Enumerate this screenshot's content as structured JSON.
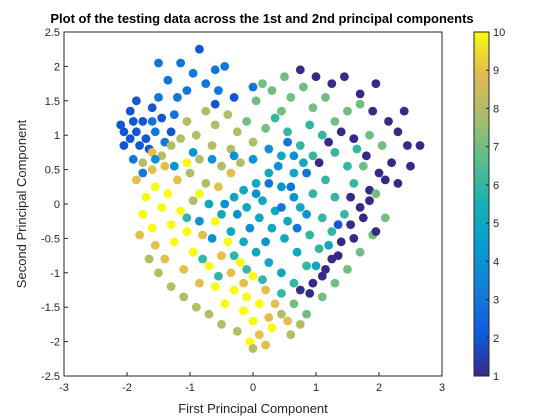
{
  "chart_data": {
    "type": "scatter",
    "title": "Plot of the testing data across the 1st and 2nd principal components",
    "xlabel": "First Principal Component",
    "ylabel": "Second Principal Component",
    "xlim": [
      -3,
      3
    ],
    "ylim": [
      -2.5,
      2.5
    ],
    "xticks": [
      "-3",
      "-2",
      "-1",
      "0",
      "1",
      "2",
      "3"
    ],
    "yticks": [
      "-2.5",
      "-2",
      "-1.5",
      "-1",
      "-0.5",
      "0",
      "0.5",
      "1",
      "1.5",
      "2",
      "2.5"
    ],
    "grid": false,
    "colorbar": {
      "colormap": "parula",
      "limits": [
        1,
        10
      ],
      "ticks": [
        "1",
        "2",
        "3",
        "4",
        "5",
        "6",
        "7",
        "8",
        "9",
        "10"
      ]
    },
    "color_value_description": "class label 1-10",
    "points": [
      [
        -2.1,
        1.15,
        2
      ],
      [
        -1.95,
        1.35,
        2
      ],
      [
        -1.85,
        1.05,
        2
      ],
      [
        -2.05,
        0.85,
        2
      ],
      [
        -1.75,
        1.2,
        2
      ],
      [
        -1.6,
        1.4,
        2
      ],
      [
        -1.55,
        1.05,
        3
      ],
      [
        -1.5,
        1.55,
        3
      ],
      [
        -1.7,
        0.95,
        2
      ],
      [
        -1.85,
        1.5,
        2
      ],
      [
        -1.4,
        0.9,
        3
      ],
      [
        -1.25,
        1.3,
        3
      ],
      [
        -1.15,
        2.05,
        3
      ],
      [
        -0.95,
        1.9,
        3
      ],
      [
        -0.85,
        2.25,
        2
      ],
      [
        -0.75,
        1.75,
        3
      ],
      [
        -0.6,
        1.95,
        3
      ],
      [
        -0.55,
        1.65,
        3
      ],
      [
        -0.45,
        2.0,
        3
      ],
      [
        -1.05,
        1.65,
        3
      ],
      [
        -1.35,
        1.8,
        3
      ],
      [
        -1.5,
        2.05,
        3
      ],
      [
        -1.95,
        0.95,
        2
      ],
      [
        -2.05,
        1.05,
        2
      ],
      [
        -1.65,
        0.8,
        2
      ],
      [
        -1.45,
        0.7,
        8
      ],
      [
        -1.3,
        0.85,
        8
      ],
      [
        -1.15,
        0.95,
        8
      ],
      [
        -1.05,
        1.2,
        8
      ],
      [
        -0.9,
        1.0,
        8
      ],
      [
        -0.75,
        1.35,
        8
      ],
      [
        -0.6,
        1.15,
        8
      ],
      [
        -0.4,
        1.3,
        8
      ],
      [
        -0.25,
        1.05,
        8
      ],
      [
        -0.1,
        1.2,
        7
      ],
      [
        0.05,
        1.5,
        7
      ],
      [
        0.15,
        1.75,
        7
      ],
      [
        0.3,
        1.65,
        7
      ],
      [
        -0.65,
        0.85,
        8
      ],
      [
        -0.35,
        0.8,
        8
      ],
      [
        -0.85,
        0.65,
        8
      ],
      [
        -1.0,
        0.45,
        8
      ],
      [
        -0.5,
        0.55,
        8
      ],
      [
        -0.2,
        0.6,
        8
      ],
      [
        0.0,
        0.9,
        8
      ],
      [
        0.2,
        1.1,
        7
      ],
      [
        0.45,
        1.35,
        7
      ],
      [
        0.6,
        1.55,
        7
      ],
      [
        0.8,
        1.7,
        7
      ],
      [
        0.95,
        1.4,
        7
      ],
      [
        1.15,
        1.55,
        7
      ],
      [
        1.3,
        1.2,
        7
      ],
      [
        1.5,
        1.35,
        7
      ],
      [
        1.7,
        1.45,
        7
      ],
      [
        1.85,
        1.0,
        7
      ],
      [
        2.05,
        0.85,
        7
      ],
      [
        1.0,
        1.85,
        1
      ],
      [
        1.25,
        1.75,
        1
      ],
      [
        1.45,
        1.85,
        1
      ],
      [
        1.7,
        1.6,
        1
      ],
      [
        1.9,
        1.35,
        1
      ],
      [
        2.15,
        1.2,
        1
      ],
      [
        2.3,
        1.05,
        1
      ],
      [
        2.45,
        0.85,
        1
      ],
      [
        2.2,
        0.6,
        1
      ],
      [
        2.0,
        0.45,
        1
      ],
      [
        1.85,
        0.2,
        1
      ],
      [
        1.7,
        -0.05,
        1
      ],
      [
        1.55,
        -0.3,
        1
      ],
      [
        1.4,
        -0.55,
        1
      ],
      [
        1.25,
        -0.8,
        1
      ],
      [
        1.1,
        -1.05,
        1
      ],
      [
        0.9,
        -1.3,
        1
      ],
      [
        1.8,
        0.7,
        1
      ],
      [
        1.6,
        0.95,
        1
      ],
      [
        1.4,
        1.05,
        1
      ],
      [
        1.2,
        0.9,
        1
      ],
      [
        1.05,
        0.6,
        1
      ],
      [
        2.4,
        1.35,
        1
      ],
      [
        2.65,
        0.85,
        1
      ],
      [
        1.95,
        1.75,
        1
      ],
      [
        0.75,
        1.95,
        1
      ],
      [
        0.5,
        1.85,
        7
      ],
      [
        0.35,
        1.25,
        6
      ],
      [
        0.55,
        1.05,
        6
      ],
      [
        0.75,
        0.85,
        6
      ],
      [
        0.95,
        0.7,
        6
      ],
      [
        0.65,
        0.45,
        5
      ],
      [
        0.45,
        0.7,
        5
      ],
      [
        0.25,
        0.45,
        5
      ],
      [
        0.05,
        0.3,
        5
      ],
      [
        -0.15,
        0.2,
        5
      ],
      [
        0.15,
        0.05,
        5
      ],
      [
        0.35,
        -0.1,
        5
      ],
      [
        0.55,
        -0.25,
        5
      ],
      [
        0.75,
        -0.05,
        5
      ],
      [
        0.95,
        0.15,
        6
      ],
      [
        1.15,
        0.35,
        6
      ],
      [
        1.3,
        0.1,
        6
      ],
      [
        1.1,
        -0.2,
        6
      ],
      [
        0.9,
        -0.45,
        6
      ],
      [
        0.7,
        -0.7,
        5
      ],
      [
        0.5,
        -0.5,
        5
      ],
      [
        0.3,
        -0.35,
        5
      ],
      [
        0.1,
        -0.2,
        5
      ],
      [
        -0.1,
        -0.05,
        5
      ],
      [
        -0.3,
        0.1,
        5
      ],
      [
        -0.5,
        -0.15,
        5
      ],
      [
        -0.7,
        0.0,
        5
      ],
      [
        -0.35,
        -0.4,
        5
      ],
      [
        -0.15,
        -0.55,
        5
      ],
      [
        0.05,
        -0.7,
        5
      ],
      [
        0.25,
        -0.85,
        5
      ],
      [
        0.45,
        -1.0,
        5
      ],
      [
        0.65,
        -1.15,
        6
      ],
      [
        0.85,
        -0.9,
        6
      ],
      [
        1.05,
        -0.65,
        6
      ],
      [
        1.25,
        -0.4,
        6
      ],
      [
        1.45,
        -0.15,
        6
      ],
      [
        1.6,
        0.3,
        6
      ],
      [
        1.75,
        0.55,
        7
      ],
      [
        1.95,
        0.15,
        7
      ],
      [
        2.1,
        -0.2,
        7
      ],
      [
        1.9,
        -0.45,
        7
      ],
      [
        1.7,
        -0.7,
        7
      ],
      [
        1.5,
        -0.95,
        7
      ],
      [
        1.3,
        -1.15,
        7
      ],
      [
        1.1,
        -1.35,
        7
      ],
      [
        0.85,
        -1.6,
        7
      ],
      [
        0.65,
        -1.45,
        7
      ],
      [
        0.45,
        -1.3,
        6
      ],
      [
        -1.85,
        0.35,
        9
      ],
      [
        -1.7,
        0.1,
        10
      ],
      [
        -1.75,
        -0.15,
        10
      ],
      [
        -1.6,
        -0.35,
        10
      ],
      [
        -1.55,
        -0.6,
        9
      ],
      [
        -1.4,
        -0.8,
        9
      ],
      [
        -1.25,
        -0.55,
        10
      ],
      [
        -1.3,
        -0.3,
        10
      ],
      [
        -1.45,
        -0.05,
        10
      ],
      [
        -1.55,
        0.25,
        10
      ],
      [
        -1.35,
        0.15,
        10
      ],
      [
        -1.15,
        -0.1,
        10
      ],
      [
        -1.05,
        -0.4,
        10
      ],
      [
        -0.95,
        -0.7,
        10
      ],
      [
        -1.1,
        -0.95,
        9
      ],
      [
        -0.85,
        -1.15,
        9
      ],
      [
        -0.7,
        -0.9,
        10
      ],
      [
        -0.6,
        -1.2,
        10
      ],
      [
        -0.45,
        -1.45,
        10
      ],
      [
        -0.3,
        -1.25,
        10
      ],
      [
        -0.15,
        -1.55,
        10
      ],
      [
        0.0,
        -1.7,
        10
      ],
      [
        -0.1,
        -1.35,
        10
      ],
      [
        0.1,
        -1.45,
        10
      ],
      [
        0.25,
        -1.65,
        9
      ],
      [
        0.1,
        -1.9,
        9
      ],
      [
        0.2,
        -2.05,
        9
      ],
      [
        -0.05,
        -2.0,
        10
      ],
      [
        0.3,
        -1.8,
        10
      ],
      [
        -0.5,
        -0.75,
        9
      ],
      [
        -0.8,
        -0.45,
        9
      ],
      [
        -0.95,
        0.05,
        8
      ],
      [
        -0.75,
        0.3,
        8
      ],
      [
        -0.55,
        0.25,
        9
      ],
      [
        -0.35,
        0.45,
        9
      ],
      [
        -1.2,
        0.35,
        9
      ],
      [
        -1.6,
        0.5,
        9
      ],
      [
        -1.8,
        -0.45,
        9
      ],
      [
        -1.65,
        -0.8,
        8
      ],
      [
        -1.5,
        -1.0,
        8
      ],
      [
        -1.3,
        -1.2,
        8
      ],
      [
        -1.1,
        -1.35,
        8
      ],
      [
        -0.9,
        -1.5,
        8
      ],
      [
        -0.7,
        -1.6,
        8
      ],
      [
        -0.5,
        -1.75,
        8
      ],
      [
        -0.25,
        -1.85,
        8
      ],
      [
        0.0,
        -2.1,
        8
      ],
      [
        0.45,
        -1.6,
        8
      ],
      [
        0.6,
        -1.9,
        8
      ],
      [
        -1.75,
        0.6,
        8
      ],
      [
        -1.6,
        0.75,
        9
      ],
      [
        -1.4,
        0.55,
        9
      ],
      [
        -1.05,
        0.6,
        10
      ],
      [
        -0.85,
        0.15,
        10
      ],
      [
        -0.6,
        -0.25,
        10
      ],
      [
        -0.4,
        -0.55,
        10
      ],
      [
        -0.2,
        -0.85,
        10
      ],
      [
        0.0,
        -1.05,
        10
      ],
      [
        0.2,
        -1.25,
        9
      ],
      [
        -0.15,
        -1.15,
        9
      ],
      [
        -0.35,
        -1.0,
        9
      ],
      [
        -1.9,
        0.65,
        3
      ],
      [
        -1.75,
        0.45,
        3
      ],
      [
        -1.55,
        0.65,
        4
      ],
      [
        -1.25,
        0.55,
        4
      ],
      [
        -0.95,
        0.75,
        4
      ],
      [
        -0.65,
        0.65,
        4
      ],
      [
        -0.3,
        0.7,
        4
      ],
      [
        0.0,
        0.65,
        4
      ],
      [
        0.25,
        0.8,
        4
      ],
      [
        0.45,
        0.25,
        4
      ],
      [
        0.65,
        0.1,
        4
      ],
      [
        0.85,
        -0.15,
        4
      ],
      [
        0.2,
        -0.55,
        4
      ],
      [
        -0.05,
        -0.35,
        4
      ],
      [
        -0.25,
        -0.15,
        4
      ],
      [
        -0.45,
        0.0,
        4
      ],
      [
        -0.65,
        -0.5,
        4
      ],
      [
        -0.85,
        -0.25,
        4
      ],
      [
        0.05,
        0.15,
        4
      ],
      [
        0.4,
        0.55,
        4
      ],
      [
        0.65,
        0.7,
        4
      ],
      [
        1.0,
        -0.9,
        5
      ],
      [
        1.2,
        -0.6,
        5
      ],
      [
        1.35,
        -0.3,
        2
      ],
      [
        0.6,
        0.25,
        3
      ],
      [
        0.85,
        0.45,
        3
      ],
      [
        0.45,
        -0.05,
        3
      ],
      [
        0.25,
        0.3,
        3
      ],
      [
        0.7,
        -0.35,
        3
      ],
      [
        0.55,
        0.9,
        3
      ],
      [
        1.55,
        0.1,
        1
      ],
      [
        1.75,
        -0.2,
        1
      ],
      [
        1.95,
        -0.4,
        1
      ],
      [
        2.1,
        0.35,
        1
      ],
      [
        1.35,
        -0.75,
        1
      ],
      [
        1.15,
        -0.95,
        1
      ],
      [
        0.95,
        -1.15,
        1
      ],
      [
        0.75,
        -1.25,
        1
      ],
      [
        1.6,
        -0.5,
        1
      ],
      [
        1.85,
        0.05,
        1
      ],
      [
        2.3,
        0.3,
        1
      ],
      [
        2.5,
        0.55,
        1
      ],
      [
        0.9,
        1.15,
        6
      ],
      [
        1.1,
        1.0,
        6
      ],
      [
        1.3,
        0.75,
        6
      ],
      [
        1.5,
        0.55,
        6
      ],
      [
        1.65,
        0.8,
        6
      ],
      [
        0.8,
        0.6,
        5
      ],
      [
        -1.05,
        -0.2,
        6
      ],
      [
        -0.8,
        -0.8,
        6
      ],
      [
        -0.55,
        -1.05,
        6
      ],
      [
        -0.3,
        -0.75,
        6
      ],
      [
        -0.1,
        -0.95,
        6
      ],
      [
        0.15,
        -1.1,
        6
      ],
      [
        0.35,
        -1.45,
        9
      ],
      [
        0.55,
        -1.7,
        9
      ],
      [
        0.75,
        -1.75,
        8
      ],
      [
        -0.6,
        1.45,
        2
      ],
      [
        -0.3,
        1.55,
        2
      ],
      [
        0.0,
        1.7,
        3
      ],
      [
        -1.45,
        1.25,
        2
      ],
      [
        -1.3,
        1.05,
        2
      ],
      [
        -1.6,
        1.2,
        3
      ],
      [
        -1.9,
        1.2,
        2
      ],
      [
        -1.8,
        0.85,
        2
      ],
      [
        -1.2,
        1.55,
        3
      ]
    ]
  }
}
